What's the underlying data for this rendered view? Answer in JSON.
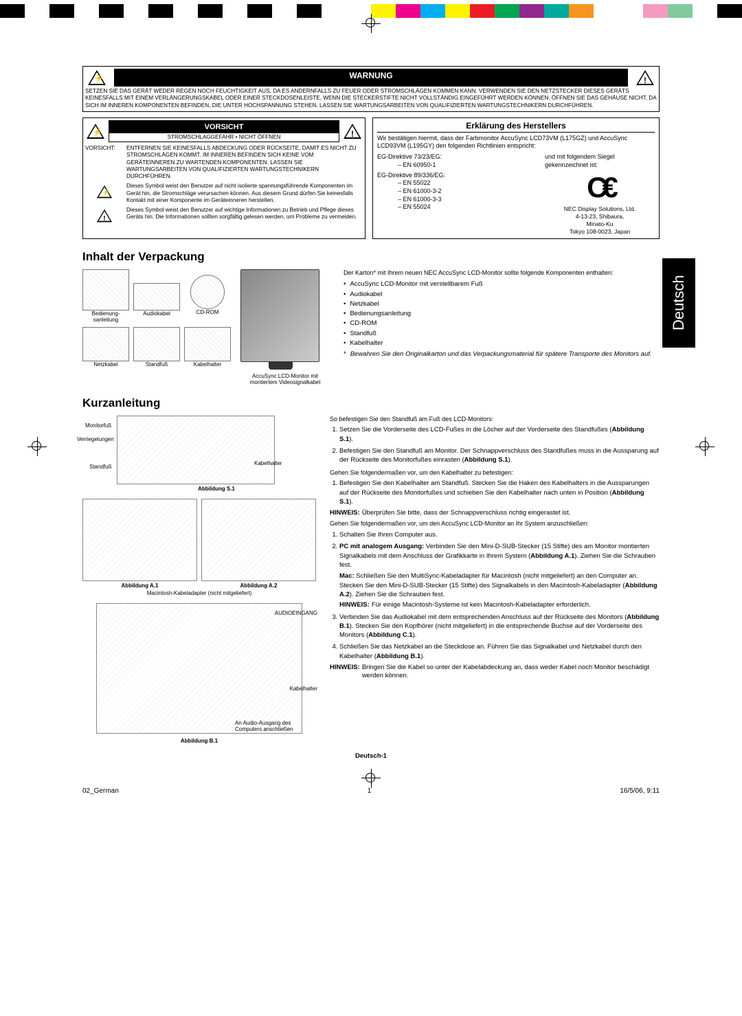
{
  "printerBar": [
    "#000000",
    "#ffffff",
    "#000000",
    "#ffffff",
    "#000000",
    "#ffffff",
    "#000000",
    "#ffffff",
    "#000000",
    "#ffffff",
    "#000000",
    "#ffffff",
    "#000000",
    "#ffffff",
    "#ffffff",
    "#fff200",
    "#ec008c",
    "#00aeef",
    "#fff200",
    "#ed1c24",
    "#00a651",
    "#92278f",
    "#00a99d",
    "#f7941d",
    "#ffffff",
    "#ffffff",
    "#f49ac1",
    "#82ca9c",
    "#ffffff",
    "#000000"
  ],
  "warnung": {
    "title": "WARNUNG",
    "body": "SETZEN SIE DAS GERÄT WEDER REGEN NOCH FEUCHTIGKEIT AUS, DA ES ANDERNFALLS ZU FEUER ODER STROMSCHLÄGEN KOMMEN KANN. VERWENDEN SIE DEN NETZSTECKER DIESES GERÄTS KEINESFALLS MIT EINEM VERLÄNGERUNGSKABEL ODER EINER STECKDOSENLEISTE, WENN DIE STECKERSTIFTE NICHT VOLLSTÄNDIG EINGEFÜHRT WERDEN KÖNNEN. ÖFFNEN SIE DAS GEHÄUSE NICHT, DA SICH IM INNEREN KOMPONENTEN BEFINDEN, DIE UNTER HOCHSPANNUNG STEHEN. LASSEN SIE WARTUNGSARBEITEN VON QUALIFIZIERTEN WARTUNGSTECHNIKERN DURCHFÜHREN."
  },
  "vorsicht": {
    "title": "VORSICHT",
    "sub": "STROMSCHLAGGEFAHR • NICHT ÖFFNEN",
    "row1Label": "VORSICHT:",
    "row1Text": "ENTFERNEN SIE KEINESFALLS ABDECKUNG ODER RÜCKSEITE, DAMIT ES NICHT ZU STROMSCHLÄGEN KOMMT. IM INNEREN BEFINDEN SICH KEINE VOM GERÄTEINNEREN ZU WARTENDEN KOMPONENTEN. LASSEN SIE WARTUNGSARBEITEN VON QUALIFIZIERTEN WARTUNGSTECHNIKERN DURCHFÜHREN.",
    "note1": "Dieses Symbol weist den Benutzer auf nicht isolierte spannungsführende Komponenten im Gerät hin, die Stromschläge verursachen können. Aus diesem Grund dürfen Sie keinesfalls Kontakt mit einer Komponente im Geräteinneren herstellen.",
    "note2": "Dieses Symbol weist den Benutzer auf wichtige Informationen zu Betrieb und Pflege dieses Geräts hin. Die Informationen sollten sorgfältig gelesen werden, um Probleme zu vermeiden."
  },
  "erklaerung": {
    "title": "Erklärung des Herstellers",
    "intro": "Wir bestätigen hiermit, dass der Farbmonitor AccuSync LCD73VM (L175GZ) und AccuSync LCD93VM (L195GY) den folgenden Richtlinien entspricht:",
    "d1": "EG-Direktive 73/23/EG:",
    "d1i1": "– EN 60950-1",
    "d2": "EG-Direktive 89/336/EG:",
    "d2items": [
      "– EN 55022",
      "– EN 61000-3-2",
      "– EN 61000-3-3",
      "– EN 55024"
    ],
    "siegel": "und mit folgendem Siegel gekennzeichnet ist:",
    "addr": "NEC Display Solutions, Ltd.\n4-13-23, Shibaura,\nMinato-Ku\nTokyo 108-0023, Japan"
  },
  "inhalt": {
    "title": "Inhalt der Verpackung",
    "items": {
      "manual": "Bedienung-sanleitung",
      "audio": "Audiokabel",
      "cd": "CD-ROM",
      "netz": "Netzkabel",
      "stand": "Standfuß",
      "kabel": "Kabelhalter",
      "monitor": "AccuSync LCD-Monitor mit montiertem Videosignalkabel"
    },
    "intro": "Der Karton* mit Ihrem neuen NEC AccuSync LCD-Monitor sollte folgende Komponenten enthalten:",
    "bullets": [
      "AccuSync LCD-Monitor mit verstellbarem Fuß",
      "Audiokabel",
      "Netzkabel",
      "Bedienungsanleitung",
      "CD-ROM",
      "Standfuß",
      "Kabelhalter"
    ],
    "note": "Bewahren Sie den Originalkarton und das Verpackungsmaterial für spätere Transporte des Monitors auf."
  },
  "kurz": {
    "title": "Kurzanleitung",
    "s1": {
      "callouts": {
        "monitorfuss": "Monitorfuß",
        "verr": "Verriegelungen",
        "standfuss": "Standfuß",
        "kabelhalter": "Kabelhalter"
      },
      "label": "Abbildung S.1"
    },
    "a1": {
      "label": "Abbildung A.1",
      "sub": "Macintosh-Kabeladapter (nicht mitgeliefert)"
    },
    "a2": {
      "label": "Abbildung A.2"
    },
    "b1": {
      "callouts": {
        "audio": "AUDIOEINGANG",
        "kabel": "Kabelhalter",
        "anaudio": "An Audio-Ausgang des Computers anschließen"
      },
      "label": "Abbildung B.1"
    },
    "rightIntro": "So befestigen Sie den Standfuß am Fuß des LCD-Monitors:",
    "ol1": [
      "Setzen Sie die Vorderseite des LCD-Fußes in die Löcher auf der Vorderseite des Standfußes (Abbildung S.1).",
      "Befestigen Sie den Standfuß am Monitor. Der Schnappverschluss des Standfußes muss in die Aussparung auf der Rückseite des Monitorfußes einrasten (Abbildung S.1)."
    ],
    "line2": "Gehen Sie folgendermaßen vor, um den Kabelhalter zu befestigen:",
    "ol2": [
      "Befestigen Sie den Kabelhalter am Standfuß. Stecken Sie die Haken des Kabelhalters in die Aussparungen auf der Rückseite des Monitorfußes und schieben Sie den Kabelhalter nach unten in Position (Abbildung S.1)."
    ],
    "hinweis1": "Überprüfen Sie bitte, dass der Schnappverschluss richtig eingerastet ist.",
    "line3": "Gehen Sie folgendermaßen vor, um den AccuSync LCD-Monitor an Ihr System anzuschließen:",
    "ol3_1": "Schalten Sie Ihren Computer aus.",
    "ol3_2a": "PC mit analogem Ausgang:",
    "ol3_2b": " Verbinden Sie den Mini-D-SUB-Stecker (15 Stifte) des am Monitor montierten Signalkabels mit dem Anschluss der Grafikkarte in Ihrem System (Abbildung A.1). Ziehen Sie die Schrauben fest.",
    "mac": "Mac: Schließen Sie den MultiSync-Kabeladapter für Macintosh (nicht mitgeliefert) an den Computer an. Stecken Sie den Mini-D-SUB-Stecker (15 Stifte) des Signalkabels in den Macintosh-Kabeladapter (Abbildung A.2). Ziehen Sie die Schrauben fest.",
    "hinweis2": "Für einige Macintosh-Systeme ist kein Macintosh-Kabeladapter erforderlich.",
    "ol3_3": "Verbinden Sie das Audiokabel mit dem entsprechenden Anschluss auf der Rückseite des Monitors (Abbildung B.1). Stecken Sie den Kopfhörer (nicht mitgeliefert) in die entsprechende Buchse auf der Vorderseite des Monitors (Abbildung C.1).",
    "ol3_4": "Schließen Sie das Netzkabel an die Steckdose an. Führen Sie das Signalkabel und Netzkabel durch den Kabelhalter (Abbildung B.1).",
    "hinweis3": "Bringen Sie die Kabel so unter der Kabelabdeckung an, dass weder Kabel noch Monitor beschädigt werden können."
  },
  "page_num": "Deutsch-1",
  "footer": {
    "left": "02_German",
    "mid": "1",
    "right": "16/5/06, 9:11"
  },
  "lang_tab": "Deutsch",
  "hinweisLabel": "HINWEIS:"
}
